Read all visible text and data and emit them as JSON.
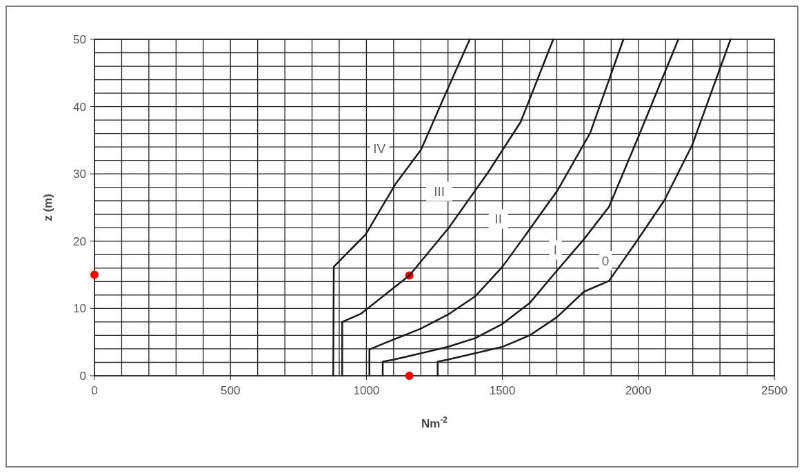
{
  "chart_data": {
    "type": "line",
    "xlabel": "Nm$^{-2}$",
    "ylabel": "z (m)",
    "xlim": [
      0,
      2500
    ],
    "ylim": [
      0,
      50
    ],
    "xticks": [
      0,
      {
        "value": 100,
        "label": null
      },
      {
        "value": 200,
        "label": null
      },
      {
        "value": 300,
        "label": null
      },
      {
        "value": 400,
        "label": null
      },
      500,
      {
        "value": 600,
        "label": null
      },
      {
        "value": 700,
        "label": null
      },
      {
        "value": 800,
        "label": null
      },
      {
        "value": 900,
        "label": null
      },
      1000,
      {
        "value": 1100,
        "label": null
      },
      {
        "value": 1200,
        "label": null
      },
      {
        "value": 1300,
        "label": null
      },
      {
        "value": 1400,
        "label": null
      },
      1500,
      {
        "value": 1600,
        "label": null
      },
      {
        "value": 1700,
        "label": null
      },
      {
        "value": 1800,
        "label": null
      },
      {
        "value": 1900,
        "label": null
      },
      2000,
      {
        "value": 2100,
        "label": null
      },
      {
        "value": 2200,
        "label": null
      },
      {
        "value": 2300,
        "label": null
      },
      {
        "value": 2400,
        "label": null
      },
      2500
    ],
    "yticks": [
      0,
      {
        "value": 2,
        "label": null
      },
      {
        "value": 4,
        "label": null
      },
      {
        "value": 6,
        "label": null
      },
      {
        "value": 8,
        "label": null
      },
      10,
      {
        "value": 12,
        "label": null
      },
      {
        "value": 14,
        "label": null
      },
      {
        "value": 16,
        "label": null
      },
      {
        "value": 18,
        "label": null
      },
      20,
      {
        "value": 22,
        "label": null
      },
      {
        "value": 24,
        "label": null
      },
      {
        "value": 26,
        "label": null
      },
      {
        "value": 28,
        "label": null
      },
      30,
      {
        "value": 32,
        "label": null
      },
      {
        "value": 34,
        "label": null
      },
      {
        "value": 36,
        "label": null
      },
      {
        "value": 38,
        "label": null
      },
      40,
      {
        "value": 42,
        "label": null
      },
      {
        "value": 44,
        "label": null
      },
      {
        "value": 46,
        "label": null
      },
      {
        "value": 48,
        "label": null
      },
      50
    ],
    "grid": true,
    "marker": "none",
    "line_style": "solid",
    "series": [
      {
        "color": "#1a1a1a",
        "x": [
          878,
          880,
          997,
          1107,
          1201,
          1294,
          1380
        ],
        "values": [
          0,
          16.2,
          21.0,
          28.5,
          33.6,
          42.2,
          50
        ]
      },
      {
        "color": "#1a1a1a",
        "x": [
          911,
          911,
          979,
          1158,
          1303,
          1447,
          1567,
          1687
        ],
        "values": [
          0,
          8.0,
          9.2,
          14.9,
          22.0,
          30.2,
          37.7,
          50
        ]
      },
      {
        "color": "#1a1a1a",
        "x": [
          1011,
          1011,
          1064,
          1200,
          1300,
          1400,
          1500,
          1574,
          1702,
          1823,
          1945
        ],
        "values": [
          0,
          3.9,
          4.8,
          7.0,
          9.1,
          11.8,
          16.2,
          20.3,
          27.5,
          36.1,
          50
        ]
      },
      {
        "color": "#1a1a1a",
        "x": [
          1060,
          1060,
          1102,
          1300,
          1400,
          1500,
          1600,
          1700,
          1800,
          1892,
          2002,
          2147
        ],
        "values": [
          0,
          2.1,
          2.4,
          4.3,
          5.6,
          7.7,
          10.8,
          15.6,
          20.3,
          25.1,
          35.7,
          50
        ]
      },
      {
        "color": "#1a1a1a",
        "x": [
          1262,
          1262,
          1300,
          1500,
          1600,
          1700,
          1800,
          1892,
          1994,
          2096,
          2198,
          2339
        ],
        "values": [
          0,
          2.1,
          2.4,
          4.3,
          6.0,
          8.7,
          12.5,
          14.1,
          20.0,
          26.1,
          34.3,
          50
        ]
      },
      {
        "type": "scatter",
        "marker": "circle",
        "color": "#ff0000",
        "x": [
          0,
          1158,
          1158
        ],
        "values": [
          15,
          14.9,
          0
        ]
      }
    ],
    "annotations": [
      {
        "text": "IV",
        "x": 1048,
        "y": 33.8
      },
      {
        "text": "III",
        "x": 1268,
        "y": 27.4
      },
      {
        "text": "II",
        "x": 1485,
        "y": 23.3
      },
      {
        "text": "I",
        "x": 1695,
        "y": 18.7
      },
      {
        "text": "0",
        "x": 1879,
        "y": 17.1
      }
    ]
  }
}
